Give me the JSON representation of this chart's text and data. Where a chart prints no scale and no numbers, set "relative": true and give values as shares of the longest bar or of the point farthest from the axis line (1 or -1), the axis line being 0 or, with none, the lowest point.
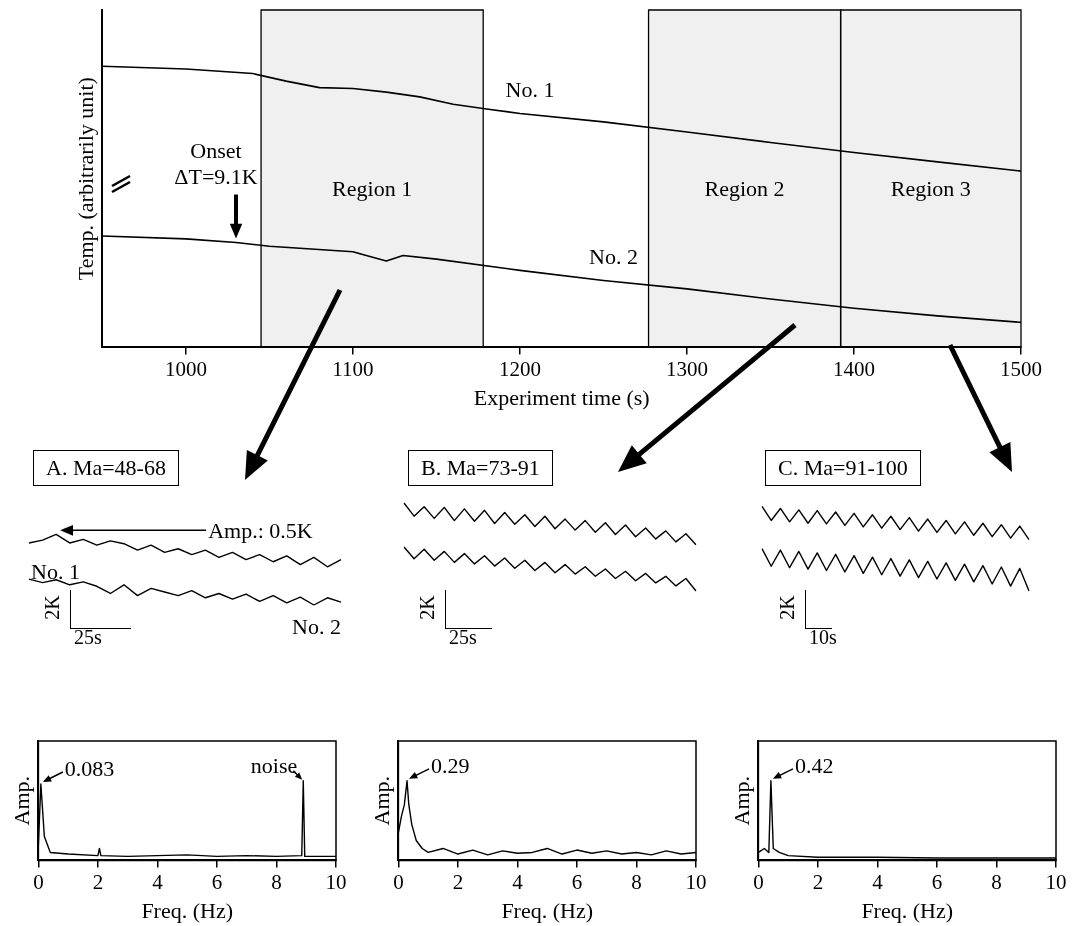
{
  "chart_data": [
    {
      "type": "line",
      "relative": true,
      "xlabel": "Experiment time (s)",
      "ylabel": "Temp. (arbitrarily unit)",
      "xlim": [
        950,
        1500
      ],
      "xticks": [
        1000,
        1100,
        1200,
        1300,
        1400,
        1500
      ],
      "legend": false,
      "grid": false,
      "marker": "none",
      "line_style": "solid",
      "series": [
        {
          "name": "No. 1",
          "color": "#000000",
          "x": [
            950,
            1000,
            1040,
            1060,
            1080,
            1100,
            1120,
            1140,
            1160,
            1180,
            1200,
            1250,
            1300,
            1350,
            1400,
            1450,
            1500
          ],
          "values": [
            1,
            0.99,
            0.974,
            0.947,
            0.924,
            0.921,
            0.908,
            0.891,
            0.865,
            0.848,
            0.832,
            0.802,
            0.766,
            0.729,
            0.693,
            0.66,
            0.627
          ]
        },
        {
          "name": "No. 2",
          "color": "#000000",
          "x": [
            950,
            1000,
            1030,
            1050,
            1100,
            1120,
            1130,
            1150,
            1200,
            1250,
            1300,
            1350,
            1400,
            1450,
            1500
          ],
          "values": [
            0.396,
            0.386,
            0.373,
            0.36,
            0.34,
            0.307,
            0.327,
            0.314,
            0.274,
            0.238,
            0.208,
            0.172,
            0.139,
            0.112,
            0.089
          ]
        }
      ],
      "bands": [
        {
          "axis": "x",
          "from": 1045,
          "to": 1178,
          "label": "Region 1",
          "color": "#000000"
        },
        {
          "axis": "x",
          "from": 1277,
          "to": 1392,
          "label": "Region 2",
          "color": "#000000"
        },
        {
          "axis": "x",
          "from": 1392,
          "to": 1500,
          "label": "Region 3",
          "color": "#000000"
        }
      ],
      "annotations": [
        {
          "text": "Onset\nΔT=9.1K",
          "x": 1030,
          "y": 0.373
        }
      ]
    },
    {
      "type": "line",
      "relative": true,
      "title": "A. Ma=48-68",
      "tick_labels": false,
      "grid": false,
      "marker": "none",
      "line_style": "solid",
      "categories": [
        null,
        null,
        null,
        null,
        null,
        null,
        null,
        null,
        null,
        null,
        null,
        null,
        null,
        null,
        null,
        null,
        null,
        null,
        null,
        null,
        null,
        null,
        null,
        null
      ],
      "series": [
        {
          "name": "No. 1",
          "color": "#000000",
          "values": [
            0.878,
            0.918,
            1,
            0.878,
            0.929,
            0.847,
            0.908,
            0.867,
            0.776,
            0.847,
            0.745,
            0.796,
            0.714,
            0.776,
            0.673,
            0.745,
            0.643,
            0.714,
            0.612,
            0.694,
            0.571,
            0.673,
            0.541,
            0.643
          ]
        },
        {
          "name": "No. 2",
          "color": "#000000",
          "values": [
            0.367,
            0.316,
            0.357,
            0.286,
            0.327,
            0.265,
            0.163,
            0.286,
            0.133,
            0.235,
            0.184,
            0.133,
            0.204,
            0.102,
            0.163,
            0.082,
            0.153,
            0.051,
            0.133,
            0.031,
            0.112,
            0,
            0.102,
            0.041
          ]
        }
      ],
      "annotations": [
        "Amp.: 0.5K",
        "2K",
        "25s"
      ]
    },
    {
      "type": "line",
      "relative": true,
      "title": "B. Ma=73-91",
      "tick_labels": false,
      "legend": false,
      "grid": false,
      "marker": "none",
      "line_style": "solid",
      "categories": [
        null,
        null,
        null,
        null,
        null,
        null,
        null,
        null,
        null,
        null,
        null,
        null,
        null,
        null,
        null,
        null,
        null,
        null,
        null,
        null,
        null,
        null,
        null,
        null,
        null,
        null,
        null,
        null,
        null,
        null
      ],
      "series": [
        {
          "color": "#000000",
          "values": [
            1,
            0.85,
            0.958,
            0.825,
            0.95,
            0.8,
            0.933,
            0.792,
            0.917,
            0.767,
            0.892,
            0.758,
            0.867,
            0.733,
            0.85,
            0.708,
            0.817,
            0.692,
            0.8,
            0.667,
            0.775,
            0.642,
            0.75,
            0.617,
            0.717,
            0.592,
            0.683,
            0.558,
            0.65,
            0.525
          ]
        },
        {
          "color": "#000000",
          "values": [
            0.5,
            0.367,
            0.475,
            0.35,
            0.45,
            0.325,
            0.425,
            0.308,
            0.4,
            0.283,
            0.375,
            0.258,
            0.35,
            0.233,
            0.325,
            0.208,
            0.3,
            0.192,
            0.275,
            0.167,
            0.25,
            0.142,
            0.225,
            0.117,
            0.2,
            0.092,
            0.167,
            0.058,
            0.142,
            0
          ]
        }
      ],
      "annotations": [
        "2K",
        "25s"
      ]
    },
    {
      "type": "line",
      "relative": true,
      "title": "C. Ma=91-100",
      "tick_labels": false,
      "legend": false,
      "grid": false,
      "marker": "none",
      "line_style": "solid",
      "categories": [
        null,
        null,
        null,
        null,
        null,
        null,
        null,
        null,
        null,
        null,
        null,
        null,
        null,
        null,
        null,
        null,
        null,
        null,
        null,
        null,
        null,
        null,
        null,
        null,
        null,
        null,
        null,
        null,
        null,
        null
      ],
      "series": [
        {
          "color": "#000000",
          "values": [
            1,
            0.833,
            0.975,
            0.817,
            0.958,
            0.8,
            0.95,
            0.792,
            0.933,
            0.775,
            0.917,
            0.758,
            0.9,
            0.742,
            0.883,
            0.725,
            0.867,
            0.708,
            0.85,
            0.692,
            0.833,
            0.675,
            0.817,
            0.658,
            0.8,
            0.642,
            0.783,
            0.625,
            0.767,
            0.608
          ]
        },
        {
          "color": "#000000",
          "values": [
            0.5,
            0.292,
            0.483,
            0.275,
            0.467,
            0.258,
            0.45,
            0.242,
            0.433,
            0.225,
            0.417,
            0.208,
            0.4,
            0.192,
            0.383,
            0.175,
            0.367,
            0.158,
            0.35,
            0.142,
            0.333,
            0.125,
            0.317,
            0.108,
            0.3,
            0.083,
            0.283,
            0.058,
            0.267,
            0
          ]
        }
      ],
      "annotations": [
        "2K",
        "10s"
      ]
    },
    {
      "type": "line",
      "relative": true,
      "xlabel": "Freq. (Hz)",
      "ylabel": "Amp.",
      "xlim": [
        0,
        10
      ],
      "xticks": [
        0,
        2,
        4,
        6,
        8,
        10
      ],
      "legend": false,
      "grid": false,
      "marker": "none",
      "line_style": "solid",
      "series": [
        {
          "color": "#000000",
          "x": [
            0,
            0.083,
            0.2,
            0.4,
            1,
            2,
            2.05,
            2.1,
            3,
            4,
            5,
            6,
            7,
            8,
            8.85,
            8.9,
            8.95,
            10
          ],
          "values": [
            0.2,
            0.96,
            0.3,
            0.1,
            0.08,
            0.06,
            0.15,
            0.06,
            0.05,
            0.06,
            0.07,
            0.05,
            0.06,
            0.05,
            0.06,
            1,
            0.05,
            0.05
          ]
        }
      ],
      "annotations": [
        {
          "text": "0.083",
          "x": 0.083,
          "y": 0.96
        },
        {
          "text": "noise",
          "x": 8.9,
          "y": 1
        }
      ]
    },
    {
      "type": "line",
      "relative": true,
      "xlabel": "Freq. (Hz)",
      "ylabel": "Amp.",
      "xlim": [
        0,
        10
      ],
      "xticks": [
        0,
        2,
        4,
        6,
        8,
        10
      ],
      "legend": false,
      "grid": false,
      "marker": "none",
      "line_style": "solid",
      "series": [
        {
          "color": "#000000",
          "x": [
            0,
            0.1,
            0.2,
            0.29,
            0.35,
            0.45,
            0.6,
            0.8,
            1,
            1.5,
            2,
            2.5,
            3,
            3.5,
            4,
            4.5,
            5,
            5.5,
            6,
            6.5,
            7,
            7.5,
            8,
            8.5,
            9,
            9.5,
            10
          ],
          "values": [
            0.35,
            0.55,
            0.7,
            1,
            0.7,
            0.45,
            0.25,
            0.15,
            0.1,
            0.15,
            0.08,
            0.13,
            0.07,
            0.12,
            0.09,
            0.1,
            0.15,
            0.08,
            0.13,
            0.09,
            0.12,
            0.08,
            0.1,
            0.07,
            0.12,
            0.08,
            0.1
          ]
        }
      ],
      "annotations": [
        {
          "text": "0.29",
          "x": 0.29,
          "y": 1
        }
      ]
    },
    {
      "type": "line",
      "relative": true,
      "xlabel": "Freq. (Hz)",
      "ylabel": "Amp.",
      "xlim": [
        0,
        10
      ],
      "xticks": [
        0,
        2,
        4,
        6,
        8,
        10
      ],
      "legend": false,
      "grid": false,
      "marker": "none",
      "line_style": "solid",
      "series": [
        {
          "color": "#000000",
          "x": [
            0,
            0.2,
            0.35,
            0.42,
            0.5,
            0.7,
            1,
            2,
            4,
            6,
            8,
            10
          ],
          "values": [
            0.1,
            0.15,
            0.1,
            1,
            0.15,
            0.1,
            0.06,
            0.04,
            0.04,
            0.03,
            0.03,
            0.03
          ]
        }
      ],
      "annotations": [
        {
          "text": "0.42",
          "x": 0.42,
          "y": 1
        }
      ]
    }
  ]
}
